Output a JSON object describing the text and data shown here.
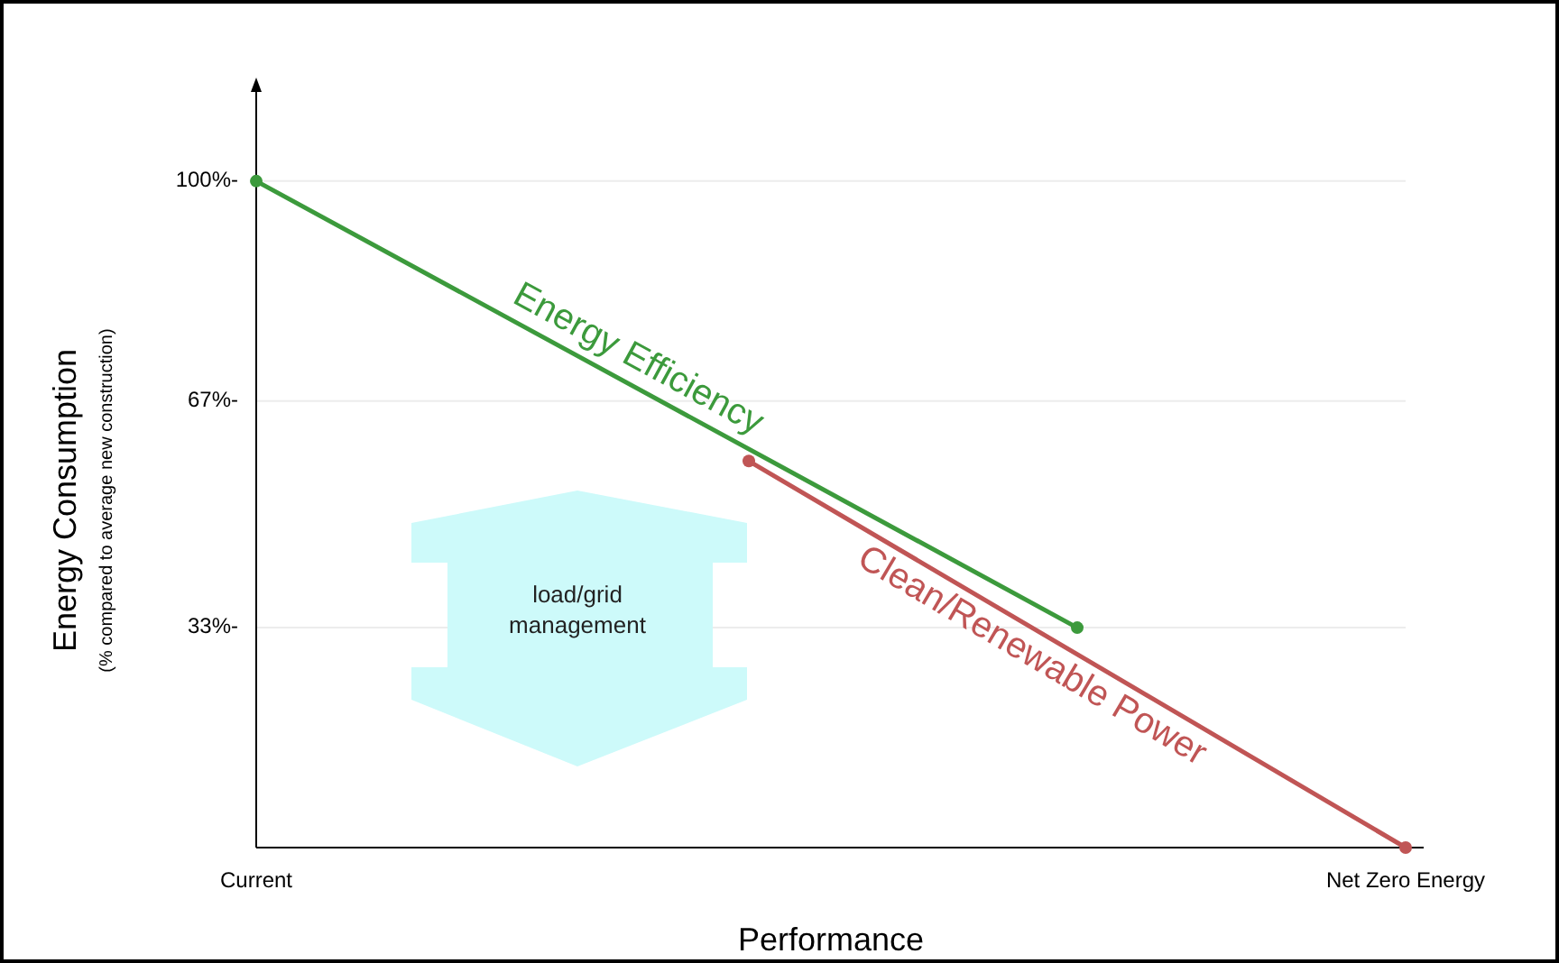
{
  "chart_data": {
    "type": "line",
    "xlabel": "Performance",
    "ylabel": "Energy Consumption",
    "annotations": [
      "(% compared to average new construction)",
      "load/grid management"
    ],
    "categories": [
      "Current",
      null,
      null,
      null,
      null,
      null,
      null,
      null,
      null,
      null,
      null,
      null,
      null,
      null,
      "Net Zero Energy"
    ],
    "ylim": [
      0,
      115
    ],
    "yticks": [
      {
        "value": 33,
        "label": "33%-"
      },
      {
        "value": 67,
        "label": "67%-"
      },
      {
        "value": 100,
        "label": "100%-"
      }
    ],
    "grid": "y",
    "marker": "circle",
    "series": [
      {
        "name": "Energy Efficiency",
        "color": "#3c9a3c",
        "values": [
          100,
          null,
          null,
          null,
          null,
          null,
          null,
          null,
          null,
          null,
          33,
          null,
          null,
          null,
          null
        ]
      },
      {
        "name": "Clean/Renewable Power",
        "color": "#c05555",
        "values": [
          null,
          null,
          null,
          null,
          null,
          null,
          58,
          null,
          null,
          null,
          null,
          null,
          null,
          null,
          0
        ]
      }
    ]
  }
}
